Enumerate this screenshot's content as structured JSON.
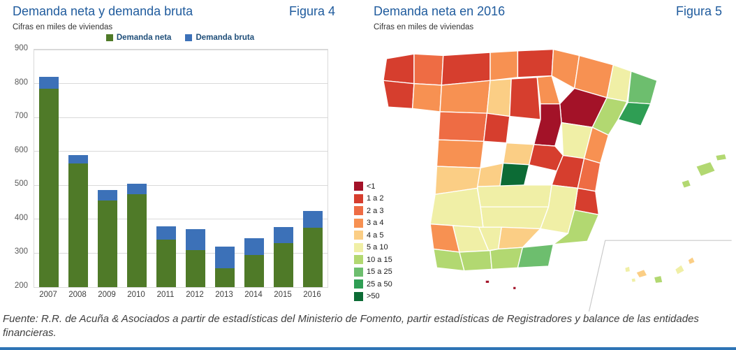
{
  "page": {
    "source_note": "Fuente: R.R. de Acuña & Asociados a partir de estadísticas del Ministerio de Fomento, partir estadísticas de Registradores y balance de las entidades financieras.",
    "accent_color": "#2E74B5"
  },
  "figure4": {
    "title": "Demanda neta y demanda bruta",
    "figure_label": "Figura 4",
    "subtitle": "Cifras en miles de viviendas",
    "chart_data": {
      "type": "bar",
      "stacked": true,
      "title": "Demanda neta y demanda bruta",
      "ylabel": "miles de viviendas",
      "categories": [
        "2007",
        "2008",
        "2009",
        "2010",
        "2011",
        "2012",
        "2013",
        "2014",
        "2015",
        "2016"
      ],
      "series": [
        {
          "name": "Demanda neta",
          "color": "#4F7A28",
          "values": [
            785,
            565,
            455,
            473,
            340,
            310,
            255,
            295,
            330,
            375
          ]
        },
        {
          "name": "Demanda bruta",
          "color": "#3C71B8",
          "values": [
            820,
            590,
            487,
            505,
            380,
            370,
            320,
            345,
            378,
            425
          ],
          "represents": "total bar height; blue cap is bruta minus neta"
        }
      ],
      "ylim": [
        200,
        900
      ],
      "yticks": [
        900,
        800,
        700,
        600,
        500,
        400,
        300,
        200
      ],
      "grid": true,
      "legend_position": "top"
    }
  },
  "figure5": {
    "title": "Demanda neta en 2016",
    "figure_label": "Figura 5",
    "subtitle": "Cifras en miles de viviendas",
    "chart_data": {
      "type": "choropleth",
      "title": "Demanda neta en 2016",
      "unit": "miles de viviendas",
      "legend": [
        {
          "label": "<1",
          "color": "#A31228"
        },
        {
          "label": "1 a 2",
          "color": "#D63E2E"
        },
        {
          "label": "2 a 3",
          "color": "#EE6C44"
        },
        {
          "label": "3 a 4",
          "color": "#F79152"
        },
        {
          "label": "4 a 5",
          "color": "#FBCE85"
        },
        {
          "label": "5 a 10",
          "color": "#F0EFA6"
        },
        {
          "label": "10 a 15",
          "color": "#B2D871"
        },
        {
          "label": "15 a 25",
          "color": "#6DBE6E"
        },
        {
          "label": "25 a 50",
          "color": "#2F9E54"
        },
        {
          "label": ">50",
          "color": "#0C6B35"
        }
      ],
      "regions": [
        {
          "name": "a-coruna",
          "category": "1 a 2"
        },
        {
          "name": "lugo",
          "category": "2 a 3"
        },
        {
          "name": "asturias",
          "category": "1 a 2"
        },
        {
          "name": "cantabria",
          "category": "3 a 4"
        },
        {
          "name": "pais-vasco",
          "category": "1 a 2"
        },
        {
          "name": "navarra",
          "category": "3 a 4"
        },
        {
          "name": "huesca",
          "category": "3 a 4"
        },
        {
          "name": "lleida",
          "category": "5 a 10"
        },
        {
          "name": "girona",
          "category": "15 a 25"
        },
        {
          "name": "barcelona",
          "category": "25 a 50"
        },
        {
          "name": "tarragona",
          "category": "10 a 15"
        },
        {
          "name": "pontevedra",
          "category": "1 a 2"
        },
        {
          "name": "ourense",
          "category": "3 a 4"
        },
        {
          "name": "leon",
          "category": "3 a 4"
        },
        {
          "name": "palencia",
          "category": "4 a 5"
        },
        {
          "name": "burgos",
          "category": "1 a 2"
        },
        {
          "name": "la-rioja",
          "category": "3 a 4"
        },
        {
          "name": "zaragoza",
          "category": "<1"
        },
        {
          "name": "soria",
          "category": "<1"
        },
        {
          "name": "zamora",
          "category": "2 a 3"
        },
        {
          "name": "valladolid",
          "category": "1 a 2"
        },
        {
          "name": "segovia",
          "category": "4 a 5"
        },
        {
          "name": "salamanca",
          "category": "3 a 4"
        },
        {
          "name": "avila",
          "category": "4 a 5"
        },
        {
          "name": "madrid",
          "category": ">50"
        },
        {
          "name": "guadalajara",
          "category": "1 a 2"
        },
        {
          "name": "teruel",
          "category": "5 a 10"
        },
        {
          "name": "castellon",
          "category": "3 a 4"
        },
        {
          "name": "cuenca",
          "category": "1 a 2"
        },
        {
          "name": "valencia",
          "category": "2 a 3"
        },
        {
          "name": "alicante",
          "category": "1 a 2"
        },
        {
          "name": "toledo",
          "category": "5 a 10"
        },
        {
          "name": "ciudad-real",
          "category": "5 a 10"
        },
        {
          "name": "albacete",
          "category": "5 a 10"
        },
        {
          "name": "murcia",
          "category": "10 a 15"
        },
        {
          "name": "caceres",
          "category": "4 a 5"
        },
        {
          "name": "badajoz",
          "category": "5 a 10"
        },
        {
          "name": "huelva",
          "category": "3 a 4"
        },
        {
          "name": "sevilla",
          "category": "5 a 10"
        },
        {
          "name": "cordoba",
          "category": "5 a 10"
        },
        {
          "name": "jaen",
          "category": "4 a 5"
        },
        {
          "name": "cadiz",
          "category": "10 a 15"
        },
        {
          "name": "malaga",
          "category": "10 a 15"
        },
        {
          "name": "granada",
          "category": "10 a 15"
        },
        {
          "name": "almeria",
          "category": "15 a 25"
        },
        {
          "name": "mallorca",
          "category": "10 a 15"
        },
        {
          "name": "menorca",
          "category": "10 a 15"
        },
        {
          "name": "ibiza",
          "category": "10 a 15"
        },
        {
          "name": "la-palma",
          "category": "5 a 10"
        },
        {
          "name": "tenerife",
          "category": "4 a 5"
        },
        {
          "name": "la-gomera",
          "category": "5 a 10"
        },
        {
          "name": "gran-canaria",
          "category": "10 a 15"
        },
        {
          "name": "fuerteventura",
          "category": "5 a 10"
        },
        {
          "name": "lanzarote",
          "category": "4 a 5"
        },
        {
          "name": "ceuta",
          "category": "<1"
        },
        {
          "name": "melilla",
          "category": "<1"
        }
      ]
    }
  }
}
